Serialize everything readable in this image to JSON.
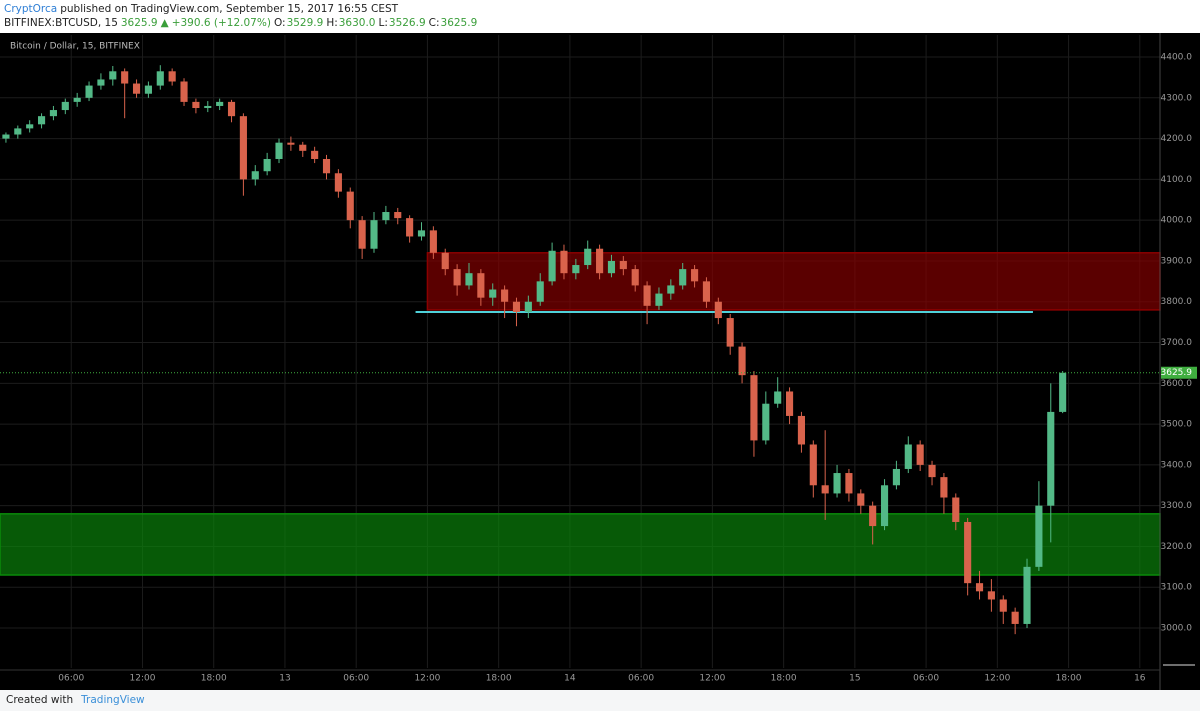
{
  "header": {
    "author": "CryptOrca",
    "published": "published on TradingView.com, September 15, 2017 16:55 CEST",
    "symbol": "BITFINEX:BTCUSD, 15",
    "price": "3625.9",
    "arrow": "▲",
    "change": "+390.6 (+12.07%)",
    "ohlc": [
      {
        "label": "O:",
        "value": "3529.9"
      },
      {
        "label": "H:",
        "value": "3630.0"
      },
      {
        "label": "L:",
        "value": "3526.9"
      },
      {
        "label": "C:",
        "value": "3625.9"
      }
    ]
  },
  "footer": {
    "created": "Created with",
    "brand": "TradingView"
  },
  "chart_data": {
    "type": "candlestick",
    "legend_text": "Bitcoin / Dollar, 15, BITFINEX",
    "up_color": "#53b987",
    "down_color": "#d9634c",
    "grid": true,
    "xlim": [
      0,
      97.7
    ],
    "ylim": [
      2902,
      4454
    ],
    "xticks": [
      {
        "value": 6,
        "label": "06:00"
      },
      {
        "value": 12,
        "label": "12:00"
      },
      {
        "value": 18,
        "label": "18:00"
      },
      {
        "value": 24,
        "label": "13"
      },
      {
        "value": 30,
        "label": "06:00"
      },
      {
        "value": 36,
        "label": "12:00"
      },
      {
        "value": 42,
        "label": "18:00"
      },
      {
        "value": 48,
        "label": "14"
      },
      {
        "value": 54,
        "label": "06:00"
      },
      {
        "value": 60,
        "label": "12:00"
      },
      {
        "value": 66,
        "label": "18:00"
      },
      {
        "value": 72,
        "label": "15"
      },
      {
        "value": 78,
        "label": "06:00"
      },
      {
        "value": 84,
        "label": "12:00"
      },
      {
        "value": 90,
        "label": "18:00"
      },
      {
        "value": 96,
        "label": "16"
      }
    ],
    "yticks": [
      {
        "value": 3000,
        "label": "3000.0"
      },
      {
        "value": 3100,
        "label": "3100.0"
      },
      {
        "value": 3200,
        "label": "3200.0"
      },
      {
        "value": 3300,
        "label": "3300.0"
      },
      {
        "value": 3400,
        "label": "3400.0"
      },
      {
        "value": 3500,
        "label": "3500.0"
      },
      {
        "value": 3600,
        "label": "3600.0"
      },
      {
        "value": 3700,
        "label": "3700.0"
      },
      {
        "value": 3800,
        "label": "3800.0"
      },
      {
        "value": 3900,
        "label": "3900.0"
      },
      {
        "value": 4000,
        "label": "4000.0"
      },
      {
        "value": 4100,
        "label": "4100.0"
      },
      {
        "value": 4200,
        "label": "4200.0"
      },
      {
        "value": 4300,
        "label": "4300.0"
      },
      {
        "value": 4400,
        "label": "4400.0"
      }
    ],
    "last_price": {
      "value": 3625.9,
      "label": "3625.9",
      "color": "#3fae3f"
    },
    "zones": [
      {
        "low": 3780,
        "high": 3920,
        "start": 36,
        "end": 97.7,
        "color": "#8b0000"
      },
      {
        "low": 3130,
        "high": 3280,
        "start": 0,
        "end": 97.7,
        "color": "#0a8a0a"
      }
    ],
    "hline": {
      "value": 3775,
      "start": 35,
      "end": 87,
      "color": "#4fd1d9"
    },
    "x": [
      0.5,
      1.5,
      2.5,
      3.5,
      4.5,
      5.5,
      6.5,
      7.5,
      8.5,
      9.5,
      10.5,
      11.5,
      12.5,
      13.5,
      14.5,
      15.5,
      16.5,
      17.5,
      18.5,
      19.5,
      20.5,
      21.5,
      22.5,
      23.5,
      24.5,
      25.5,
      26.5,
      27.5,
      28.5,
      29.5,
      30.5,
      31.5,
      32.5,
      33.5,
      34.5,
      35.5,
      36.5,
      37.5,
      38.5,
      39.5,
      40.5,
      41.5,
      42.5,
      43.5,
      44.5,
      45.5,
      46.5,
      47.5,
      48.5,
      49.5,
      50.5,
      51.5,
      52.5,
      53.5,
      54.5,
      55.5,
      56.5,
      57.5,
      58.5,
      59.5,
      60.5,
      61.5,
      62.5,
      63.5,
      64.5,
      65.5,
      66.5,
      67.5,
      68.5,
      69.5,
      70.5,
      71.5,
      72.5,
      73.5,
      74.5,
      75.5,
      76.5,
      77.5,
      78.5,
      79.5,
      80.5,
      81.5,
      82.5,
      83.5,
      84.5,
      85.5,
      86.5,
      87.5,
      88.5,
      89.5
    ],
    "candles": [
      [
        4200,
        4215,
        4190,
        4210
      ],
      [
        4210,
        4232,
        4200,
        4225
      ],
      [
        4225,
        4245,
        4215,
        4235
      ],
      [
        4235,
        4262,
        4225,
        4255
      ],
      [
        4255,
        4280,
        4245,
        4270
      ],
      [
        4270,
        4298,
        4260,
        4290
      ],
      [
        4290,
        4312,
        4278,
        4300
      ],
      [
        4300,
        4340,
        4292,
        4330
      ],
      [
        4330,
        4360,
        4320,
        4345
      ],
      [
        4345,
        4378,
        4330,
        4365
      ],
      [
        4365,
        4372,
        4250,
        4335
      ],
      [
        4335,
        4345,
        4300,
        4310
      ],
      [
        4310,
        4340,
        4300,
        4330
      ],
      [
        4330,
        4380,
        4320,
        4365
      ],
      [
        4365,
        4372,
        4330,
        4340
      ],
      [
        4340,
        4348,
        4280,
        4290
      ],
      [
        4290,
        4298,
        4262,
        4275
      ],
      [
        4275,
        4292,
        4265,
        4280
      ],
      [
        4280,
        4298,
        4270,
        4290
      ],
      [
        4290,
        4295,
        4240,
        4255
      ],
      [
        4255,
        4262,
        4060,
        4100
      ],
      [
        4100,
        4135,
        4085,
        4120
      ],
      [
        4120,
        4165,
        4110,
        4150
      ],
      [
        4150,
        4200,
        4140,
        4190
      ],
      [
        4190,
        4205,
        4170,
        4185
      ],
      [
        4185,
        4192,
        4155,
        4170
      ],
      [
        4170,
        4180,
        4140,
        4150
      ],
      [
        4150,
        4160,
        4100,
        4115
      ],
      [
        4115,
        4125,
        4055,
        4070
      ],
      [
        4070,
        4080,
        3980,
        4000
      ],
      [
        4000,
        4010,
        3905,
        3930
      ],
      [
        3930,
        4020,
        3920,
        4000
      ],
      [
        4000,
        4035,
        3990,
        4020
      ],
      [
        4020,
        4030,
        3990,
        4005
      ],
      [
        4005,
        4012,
        3945,
        3960
      ],
      [
        3960,
        3995,
        3950,
        3975
      ],
      [
        3975,
        3985,
        3905,
        3920
      ],
      [
        3920,
        3930,
        3865,
        3880
      ],
      [
        3880,
        3892,
        3815,
        3840
      ],
      [
        3840,
        3895,
        3830,
        3870
      ],
      [
        3870,
        3880,
        3790,
        3810
      ],
      [
        3810,
        3845,
        3790,
        3830
      ],
      [
        3830,
        3840,
        3760,
        3800
      ],
      [
        3800,
        3810,
        3740,
        3775
      ],
      [
        3775,
        3815,
        3760,
        3800
      ],
      [
        3800,
        3870,
        3790,
        3850
      ],
      [
        3850,
        3945,
        3840,
        3925
      ],
      [
        3925,
        3940,
        3855,
        3870
      ],
      [
        3870,
        3905,
        3855,
        3890
      ],
      [
        3890,
        3950,
        3880,
        3930
      ],
      [
        3930,
        3940,
        3855,
        3870
      ],
      [
        3870,
        3915,
        3860,
        3900
      ],
      [
        3900,
        3912,
        3865,
        3880
      ],
      [
        3880,
        3890,
        3825,
        3840
      ],
      [
        3840,
        3850,
        3745,
        3790
      ],
      [
        3790,
        3835,
        3780,
        3820
      ],
      [
        3820,
        3855,
        3805,
        3840
      ],
      [
        3840,
        3895,
        3830,
        3880
      ],
      [
        3880,
        3890,
        3835,
        3850
      ],
      [
        3850,
        3860,
        3785,
        3800
      ],
      [
        3800,
        3810,
        3745,
        3760
      ],
      [
        3760,
        3770,
        3670,
        3690
      ],
      [
        3690,
        3700,
        3600,
        3620
      ],
      [
        3620,
        3630,
        3420,
        3460
      ],
      [
        3460,
        3580,
        3450,
        3550
      ],
      [
        3550,
        3615,
        3540,
        3580
      ],
      [
        3580,
        3590,
        3500,
        3520
      ],
      [
        3520,
        3530,
        3430,
        3450
      ],
      [
        3450,
        3460,
        3320,
        3350
      ],
      [
        3350,
        3485,
        3265,
        3330
      ],
      [
        3330,
        3400,
        3320,
        3380
      ],
      [
        3380,
        3390,
        3310,
        3330
      ],
      [
        3330,
        3340,
        3280,
        3300
      ],
      [
        3300,
        3310,
        3205,
        3250
      ],
      [
        3250,
        3365,
        3240,
        3350
      ],
      [
        3350,
        3410,
        3340,
        3390
      ],
      [
        3390,
        3470,
        3380,
        3450
      ],
      [
        3450,
        3460,
        3385,
        3400
      ],
      [
        3400,
        3410,
        3350,
        3370
      ],
      [
        3370,
        3380,
        3280,
        3320
      ],
      [
        3320,
        3330,
        3240,
        3260
      ],
      [
        3260,
        3270,
        3080,
        3110
      ],
      [
        3110,
        3140,
        3070,
        3090
      ],
      [
        3090,
        3120,
        3040,
        3070
      ],
      [
        3070,
        3080,
        3010,
        3040
      ],
      [
        3040,
        3050,
        2985,
        3010
      ],
      [
        3010,
        3170,
        3000,
        3150
      ],
      [
        3150,
        3360,
        3140,
        3300
      ],
      [
        3300,
        3600,
        3210,
        3529.9
      ],
      [
        3529.9,
        3630.0,
        3526.9,
        3625.9
      ]
    ]
  }
}
